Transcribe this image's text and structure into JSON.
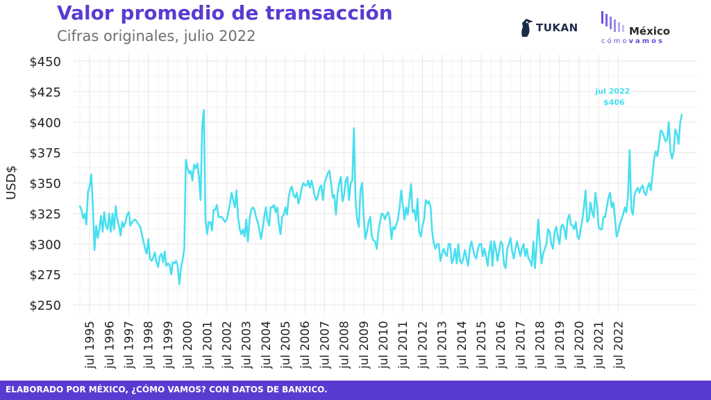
{
  "header": {
    "title": "Valor promedio de transacción",
    "subtitle": "Cifras originales, julio 2022"
  },
  "logos": {
    "tukan": "TUKAN",
    "mcv_top": "México",
    "mcv_bottom_light": "cómo",
    "mcv_bottom_bold": "vamos"
  },
  "footer": {
    "text": "ELABORADO POR MÉXICO, ¿CÓMO VAMOS? CON DATOS DE BANXICO."
  },
  "colors": {
    "line": "#48dff0",
    "title": "#5a3bd1",
    "footer_bg": "#5a3bd1",
    "grid": "#e6e6e6"
  },
  "chart_data": {
    "type": "line",
    "ylabel": "USD$",
    "ylim": [
      250,
      450
    ],
    "y_ticks": [
      250,
      275,
      300,
      325,
      350,
      375,
      400,
      425,
      450
    ],
    "y_tick_labels": [
      "$250",
      "$275",
      "$300",
      "$325",
      "$350",
      "$375",
      "$400",
      "$425",
      "$450"
    ],
    "x_tick_labels": [
      "jul 1995",
      "jul 1996",
      "jul 1997",
      "jul 1998",
      "jul 1999",
      "jul 2000",
      "jul 2001",
      "jul 2002",
      "jul 2003",
      "jul 2004",
      "jul 2005",
      "jul 2006",
      "jul 2007",
      "jul 2008",
      "jul 2009",
      "jul 2010",
      "jul 2011",
      "jul 2012",
      "jul 2013",
      "jul 2014",
      "jul 2015",
      "jul 2016",
      "jul 2017",
      "jul 2018",
      "jul 2019",
      "jul 2020",
      "jul 2021",
      "jul 2022"
    ],
    "grid": true,
    "annotation": {
      "label": "jul 2022",
      "value_label": "$406",
      "date": "2022-07",
      "value": 406
    },
    "series": [
      {
        "start": "1995-01",
        "frequency": "monthly",
        "values": [
          331,
          328,
          321,
          325,
          316,
          343,
          347,
          357,
          330,
          295,
          315,
          305,
          312,
          323,
          310,
          326,
          315,
          312,
          325,
          310,
          325,
          312,
          331,
          320,
          315,
          307,
          318,
          314,
          318,
          324,
          326,
          315,
          318,
          319,
          320,
          318,
          316,
          314,
          308,
          302,
          296,
          292,
          304,
          288,
          286,
          289,
          293,
          285,
          281,
          290,
          292,
          285,
          294,
          282,
          284,
          283,
          275,
          285,
          284,
          286,
          282,
          267,
          280,
          287,
          296,
          369,
          362,
          358,
          360,
          352,
          365,
          362,
          366,
          355,
          336,
          396,
          410,
          320,
          308,
          318,
          318,
          311,
          328,
          328,
          332,
          322,
          322,
          322,
          320,
          318,
          320,
          326,
          333,
          342,
          336,
          330,
          344,
          322,
          312,
          308,
          312,
          306,
          320,
          302,
          320,
          328,
          330,
          328,
          322,
          318,
          312,
          304,
          312,
          322,
          330,
          320,
          315,
          330,
          330,
          332,
          326,
          330,
          316,
          308,
          322,
          324,
          330,
          324,
          338,
          345,
          347,
          340,
          338,
          342,
          333,
          338,
          346,
          350,
          348,
          348,
          352,
          346,
          352,
          346,
          339,
          336,
          340,
          346,
          348,
          336,
          350,
          354,
          358,
          360,
          350,
          338,
          340,
          324,
          342,
          350,
          355,
          335,
          340,
          352,
          355,
          336,
          350,
          352,
          395,
          336,
          320,
          314,
          344,
          350,
          322,
          304,
          310,
          318,
          322,
          306,
          303,
          302,
          296,
          310,
          318,
          325,
          324,
          320,
          324,
          326,
          320,
          304,
          314,
          312,
          316,
          320,
          330,
          344,
          332,
          320,
          330,
          324,
          336,
          349,
          326,
          328,
          319,
          337,
          310,
          306,
          315,
          320,
          336,
          333,
          335,
          330,
          310,
          300,
          296,
          300,
          300,
          286,
          292,
          296,
          292,
          290,
          300,
          300,
          284,
          288,
          296,
          284,
          300,
          286,
          284,
          288,
          295,
          288,
          282,
          296,
          302,
          296,
          290,
          288,
          296,
          300,
          300,
          290,
          296,
          290,
          282,
          294,
          302,
          282,
          302,
          296,
          286,
          294,
          302,
          300,
          283,
          280,
          296,
          300,
          305,
          294,
          288,
          296,
          302,
          296,
          290,
          296,
          300,
          290,
          296,
          288,
          286,
          282,
          302,
          280,
          300,
          320,
          300,
          284,
          292,
          296,
          300,
          312,
          310,
          300,
          296,
          310,
          314,
          306,
          300,
          314,
          316,
          312,
          304,
          320,
          324,
          316,
          315,
          312,
          318,
          306,
          304,
          312,
          320,
          330,
          344,
          318,
          320,
          334,
          326,
          322,
          342,
          332,
          314,
          312,
          312,
          322,
          322,
          330,
          338,
          342,
          330,
          334,
          321,
          306,
          310,
          316,
          320,
          324,
          330,
          326,
          340,
          377,
          328,
          324,
          340,
          344,
          346,
          342,
          346,
          348,
          342,
          340,
          346,
          350,
          344,
          356,
          370,
          376,
          372,
          382,
          393,
          392,
          388,
          384,
          386,
          400,
          376,
          370,
          376,
          394,
          390,
          382,
          400,
          406
        ]
      }
    ]
  }
}
